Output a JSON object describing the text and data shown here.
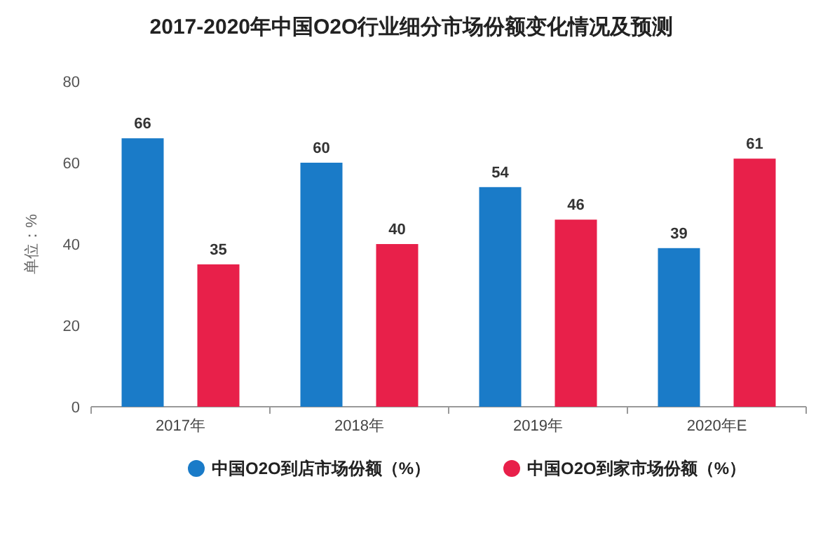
{
  "chart_data": {
    "type": "bar",
    "title": "2017-2020年中国O2O行业细分市场份额变化情况及预测",
    "ylabel": "单位：%",
    "categories": [
      "2017年",
      "2018年",
      "2019年",
      "2020年E"
    ],
    "series": [
      {
        "name": "中国O2O到店市场份额（%）",
        "color": "#1a7bc8",
        "values": [
          66,
          60,
          54,
          39
        ]
      },
      {
        "name": "中国O2O到家市场份额（%）",
        "color": "#e8204a",
        "values": [
          35,
          40,
          46,
          61
        ]
      }
    ],
    "ylim": [
      0,
      80
    ],
    "yticks": [
      0,
      20,
      40,
      60,
      80
    ],
    "data_labels": true,
    "legend": "bottom",
    "grid": false
  }
}
